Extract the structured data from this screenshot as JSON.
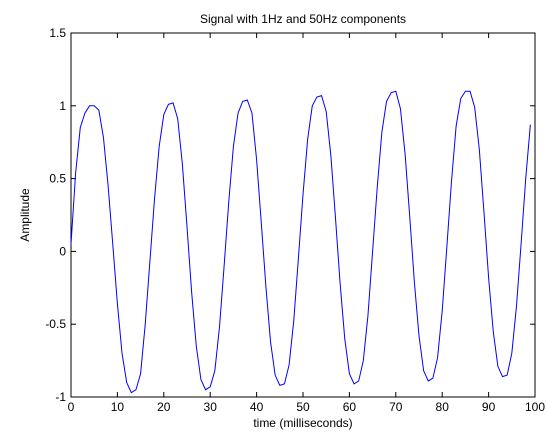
{
  "chart_data": {
    "type": "line",
    "title": "Signal with 1Hz and 50Hz components",
    "xlabel": "time (milliseconds)",
    "ylabel": "Amplitude",
    "xlim": [
      0,
      100
    ],
    "ylim": [
      -1,
      1.5
    ],
    "xticks": [
      "0",
      "10",
      "20",
      "30",
      "40",
      "50",
      "60",
      "70",
      "80",
      "90",
      "100"
    ],
    "yticks": [
      "-1",
      "-0.5",
      "0",
      "0.5",
      "1",
      "1.5"
    ],
    "grid": false,
    "legend": "none",
    "series": [
      {
        "color": "#0000ff",
        "x": [
          0,
          1,
          2,
          3,
          4,
          5,
          6,
          7,
          8,
          9,
          10,
          11,
          12,
          13,
          14,
          15,
          16,
          17,
          18,
          19,
          20,
          21,
          22,
          23,
          24,
          25,
          26,
          27,
          28,
          29,
          30,
          31,
          32,
          33,
          34,
          35,
          36,
          37,
          38,
          39,
          40,
          41,
          42,
          43,
          44,
          45,
          46,
          47,
          48,
          49,
          50,
          51,
          52,
          53,
          54,
          55,
          56,
          57,
          58,
          59,
          60,
          61,
          62,
          63,
          64,
          65,
          66,
          67,
          68,
          69,
          70,
          71,
          72,
          73,
          74,
          75,
          76,
          77,
          78,
          79,
          80,
          81,
          82,
          83,
          84,
          85,
          86,
          87,
          88,
          89,
          90,
          91,
          92,
          93,
          94,
          95,
          96,
          97,
          98,
          99
        ],
        "y": [
          0.05,
          0.54,
          0.85,
          0.95,
          1.0,
          1.0,
          0.97,
          0.78,
          0.45,
          0.05,
          -0.36,
          -0.7,
          -0.9,
          -0.97,
          -0.95,
          -0.84,
          -0.5,
          -0.07,
          0.36,
          0.72,
          0.94,
          1.01,
          1.02,
          0.91,
          0.6,
          0.17,
          -0.28,
          -0.65,
          -0.88,
          -0.95,
          -0.93,
          -0.82,
          -0.52,
          -0.1,
          0.34,
          0.72,
          0.95,
          1.03,
          1.04,
          0.95,
          0.63,
          0.2,
          -0.24,
          -0.62,
          -0.85,
          -0.92,
          -0.91,
          -0.78,
          -0.48,
          -0.05,
          0.39,
          0.77,
          1.0,
          1.06,
          1.07,
          0.96,
          0.66,
          0.23,
          -0.22,
          -0.6,
          -0.84,
          -0.91,
          -0.89,
          -0.75,
          -0.44,
          0.0,
          0.44,
          0.82,
          1.03,
          1.09,
          1.1,
          0.98,
          0.67,
          0.24,
          -0.21,
          -0.58,
          -0.82,
          -0.89,
          -0.87,
          -0.73,
          -0.41,
          0.03,
          0.48,
          0.86,
          1.05,
          1.1,
          1.1,
          0.99,
          0.7,
          0.27,
          -0.18,
          -0.55,
          -0.79,
          -0.86,
          -0.85,
          -0.7,
          -0.38,
          0.05,
          0.5,
          0.87
        ]
      }
    ]
  }
}
